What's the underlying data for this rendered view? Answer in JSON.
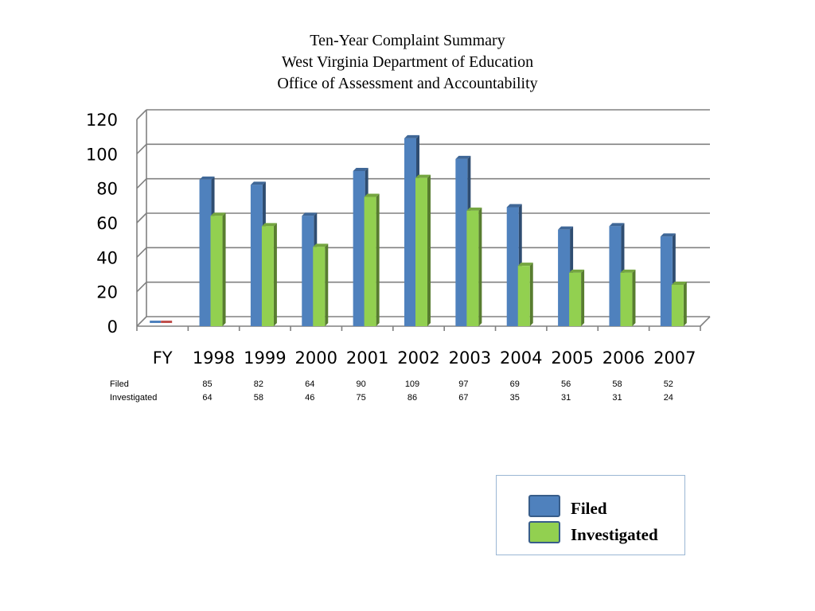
{
  "title": {
    "line1": "Ten-Year Complaint Summary",
    "line2": "West Virginia Department of Education",
    "line3": "Office of Assessment and Accountability"
  },
  "colors": {
    "filed": "#4f81bd",
    "investigated": "#92d050"
  },
  "chart_data": {
    "type": "bar",
    "categories": [
      "FY",
      "1998",
      "1999",
      "2000",
      "2001",
      "2002",
      "2003",
      "2004",
      "2005",
      "2006",
      "2007"
    ],
    "series": [
      {
        "name": "Filed",
        "values": [
          0,
          85,
          82,
          64,
          90,
          109,
          97,
          69,
          56,
          58,
          52
        ]
      },
      {
        "name": "Investigated",
        "values": [
          0,
          64,
          58,
          46,
          75,
          86,
          67,
          35,
          31,
          31,
          24
        ]
      }
    ],
    "yticks": [
      "0",
      "20",
      "40",
      "60",
      "80",
      "100",
      "120"
    ],
    "ylim": [
      0,
      120
    ],
    "grid": true,
    "legend_position": "bottom-right"
  },
  "table": {
    "rows": [
      {
        "label": "Filed",
        "values": [
          "85",
          "82",
          "64",
          "90",
          "109",
          "97",
          "69",
          "56",
          "58",
          "52"
        ]
      },
      {
        "label": "Investigated",
        "values": [
          "64",
          "58",
          "46",
          "75",
          "86",
          "67",
          "35",
          "31",
          "31",
          "24"
        ]
      }
    ]
  },
  "legend": {
    "filed": "Filed",
    "investigated": "Investigated"
  }
}
